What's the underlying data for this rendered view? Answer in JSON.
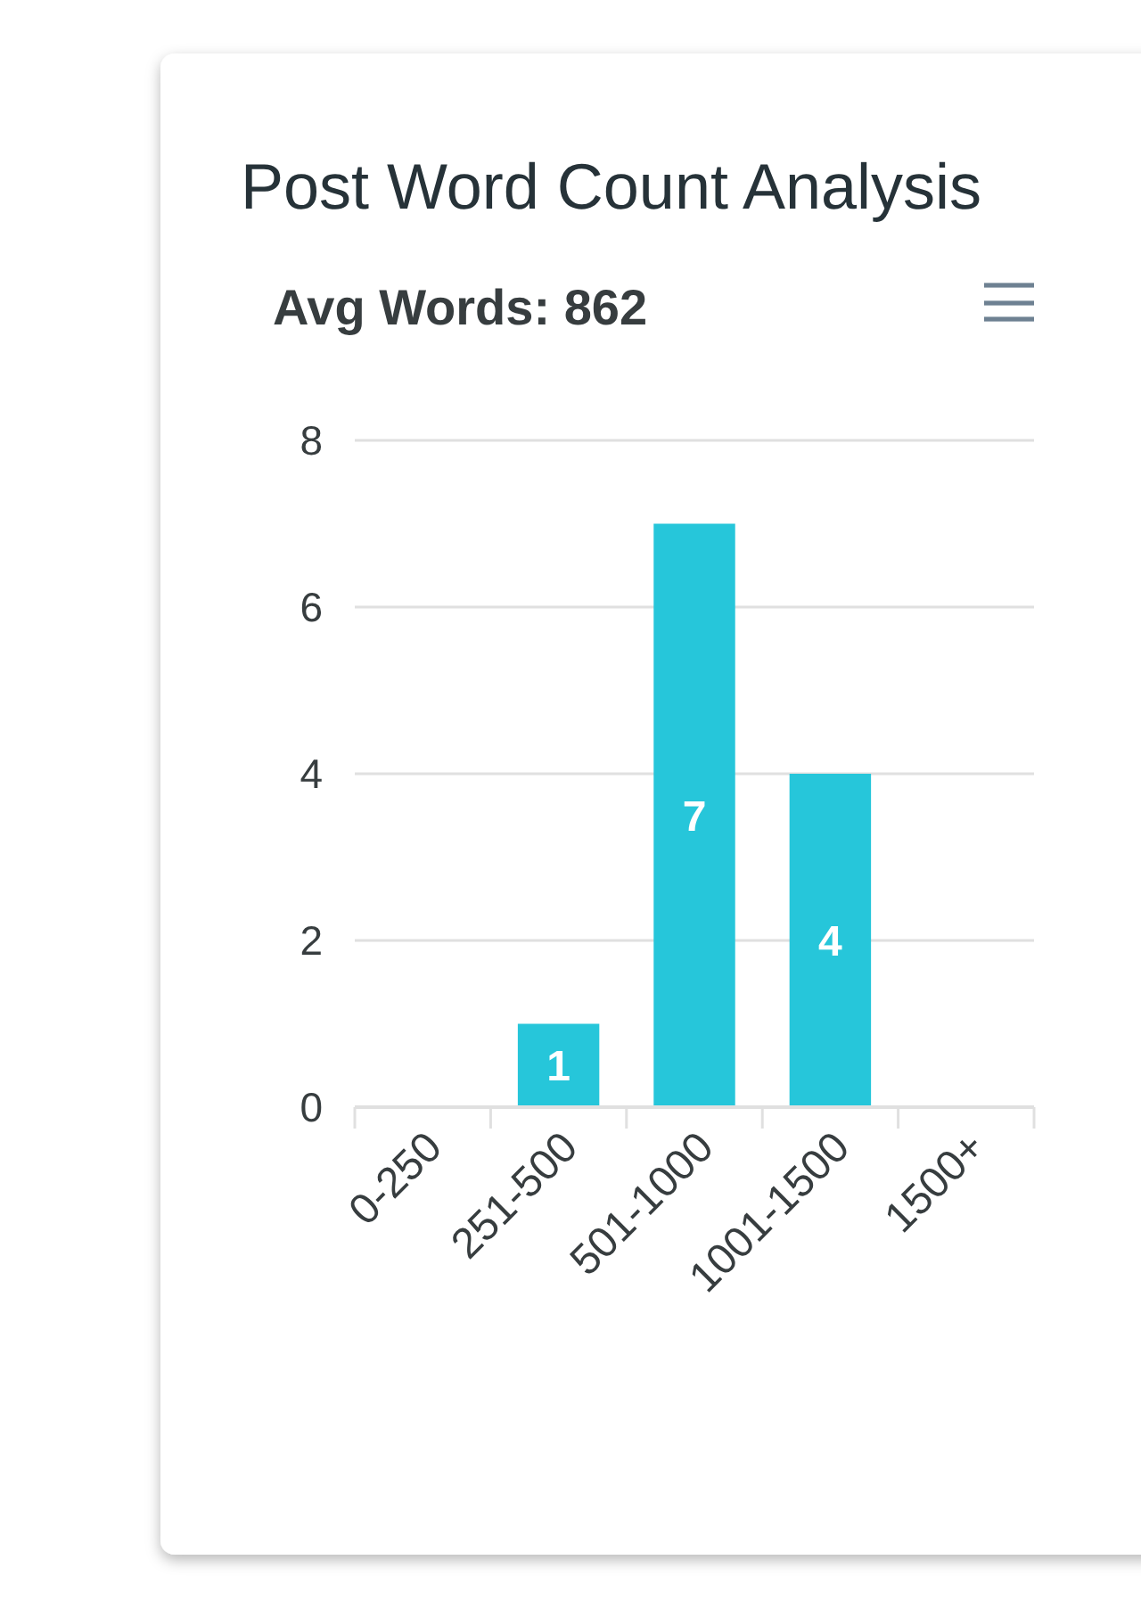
{
  "chart_data": {
    "type": "bar",
    "title": "Post Word Count Analysis",
    "subtitle": "Avg Words: 862",
    "categories": [
      "0-250",
      "251-500",
      "501-1000",
      "1001-1500",
      "1500+"
    ],
    "values": [
      0,
      1,
      7,
      4,
      0
    ],
    "color": "#26c6da",
    "value_labels": [
      null,
      "1",
      "7",
      "4",
      null
    ],
    "ylim": [
      0,
      8
    ],
    "yticks": [
      0,
      2,
      4,
      6,
      8
    ],
    "grid": "y"
  }
}
